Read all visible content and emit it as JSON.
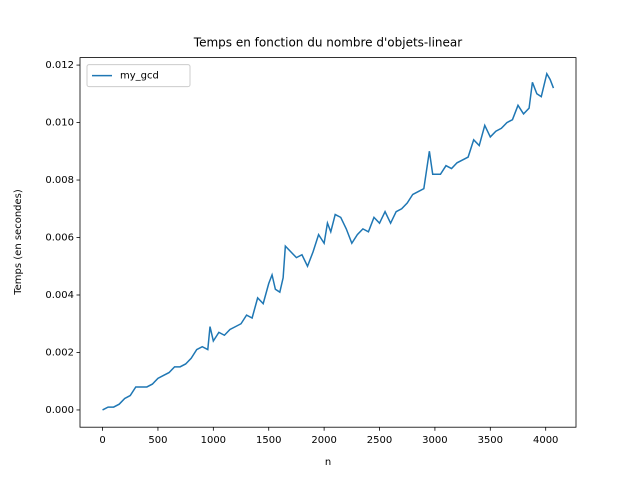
{
  "chart_data": {
    "type": "line",
    "title": "Temps en fonction du nombre d'objets-linear",
    "xlabel": "n",
    "ylabel": "Temps (en secondes)",
    "x": [
      0,
      50,
      100,
      150,
      200,
      250,
      300,
      350,
      400,
      450,
      500,
      550,
      600,
      650,
      700,
      750,
      800,
      850,
      900,
      950,
      970,
      1000,
      1050,
      1100,
      1150,
      1200,
      1250,
      1300,
      1350,
      1400,
      1450,
      1500,
      1530,
      1560,
      1600,
      1630,
      1650,
      1700,
      1750,
      1800,
      1850,
      1900,
      1950,
      2000,
      2030,
      2060,
      2100,
      2150,
      2200,
      2250,
      2300,
      2350,
      2400,
      2450,
      2500,
      2550,
      2600,
      2650,
      2700,
      2750,
      2800,
      2850,
      2900,
      2950,
      2980,
      3050,
      3100,
      3150,
      3200,
      3250,
      3300,
      3350,
      3400,
      3450,
      3500,
      3550,
      3600,
      3650,
      3700,
      3750,
      3800,
      3850,
      3880,
      3920,
      3960,
      4010,
      4040,
      4070
    ],
    "series": [
      {
        "name": "my_gcd",
        "color": "#1f77b4",
        "values": [
          0,
          0.0001,
          0.0001,
          0.0002,
          0.0004,
          0.0005,
          0.0008,
          0.0008,
          0.0008,
          0.0009,
          0.0011,
          0.0012,
          0.0013,
          0.0015,
          0.0015,
          0.0016,
          0.0018,
          0.0021,
          0.0022,
          0.0021,
          0.0029,
          0.0024,
          0.0027,
          0.0026,
          0.0028,
          0.0029,
          0.003,
          0.0033,
          0.0032,
          0.0039,
          0.0037,
          0.0044,
          0.0047,
          0.0042,
          0.0041,
          0.0046,
          0.0057,
          0.0055,
          0.0053,
          0.0054,
          0.005,
          0.0055,
          0.0061,
          0.0058,
          0.0065,
          0.0062,
          0.0068,
          0.0067,
          0.0063,
          0.0058,
          0.0061,
          0.0063,
          0.0062,
          0.0067,
          0.0065,
          0.0069,
          0.0065,
          0.0069,
          0.007,
          0.0072,
          0.0075,
          0.0076,
          0.0077,
          0.009,
          0.0082,
          0.0082,
          0.0085,
          0.0084,
          0.0086,
          0.0087,
          0.0088,
          0.0094,
          0.0092,
          0.0099,
          0.0095,
          0.0097,
          0.0098,
          0.01,
          0.0101,
          0.0106,
          0.0103,
          0.0105,
          0.0114,
          0.011,
          0.0109,
          0.0117,
          0.0115,
          0.0112
        ]
      }
    ],
    "xlim": [
      -203.5,
      4273.5
    ],
    "ylim": [
      -0.0006,
      0.01226
    ],
    "xticks": [
      0,
      500,
      1000,
      1500,
      2000,
      2500,
      3000,
      3500,
      4000
    ],
    "yticks": [
      {
        "value": 0,
        "label": "0.000"
      },
      {
        "value": 0.002,
        "label": "0.002"
      },
      {
        "value": 0.004,
        "label": "0.004"
      },
      {
        "value": 0.006,
        "label": "0.006"
      },
      {
        "value": 0.008,
        "label": "0.008"
      },
      {
        "value": 0.01,
        "label": "0.010"
      },
      {
        "value": 0.012,
        "label": "0.012"
      }
    ],
    "legend": "upper left",
    "grid": false
  }
}
